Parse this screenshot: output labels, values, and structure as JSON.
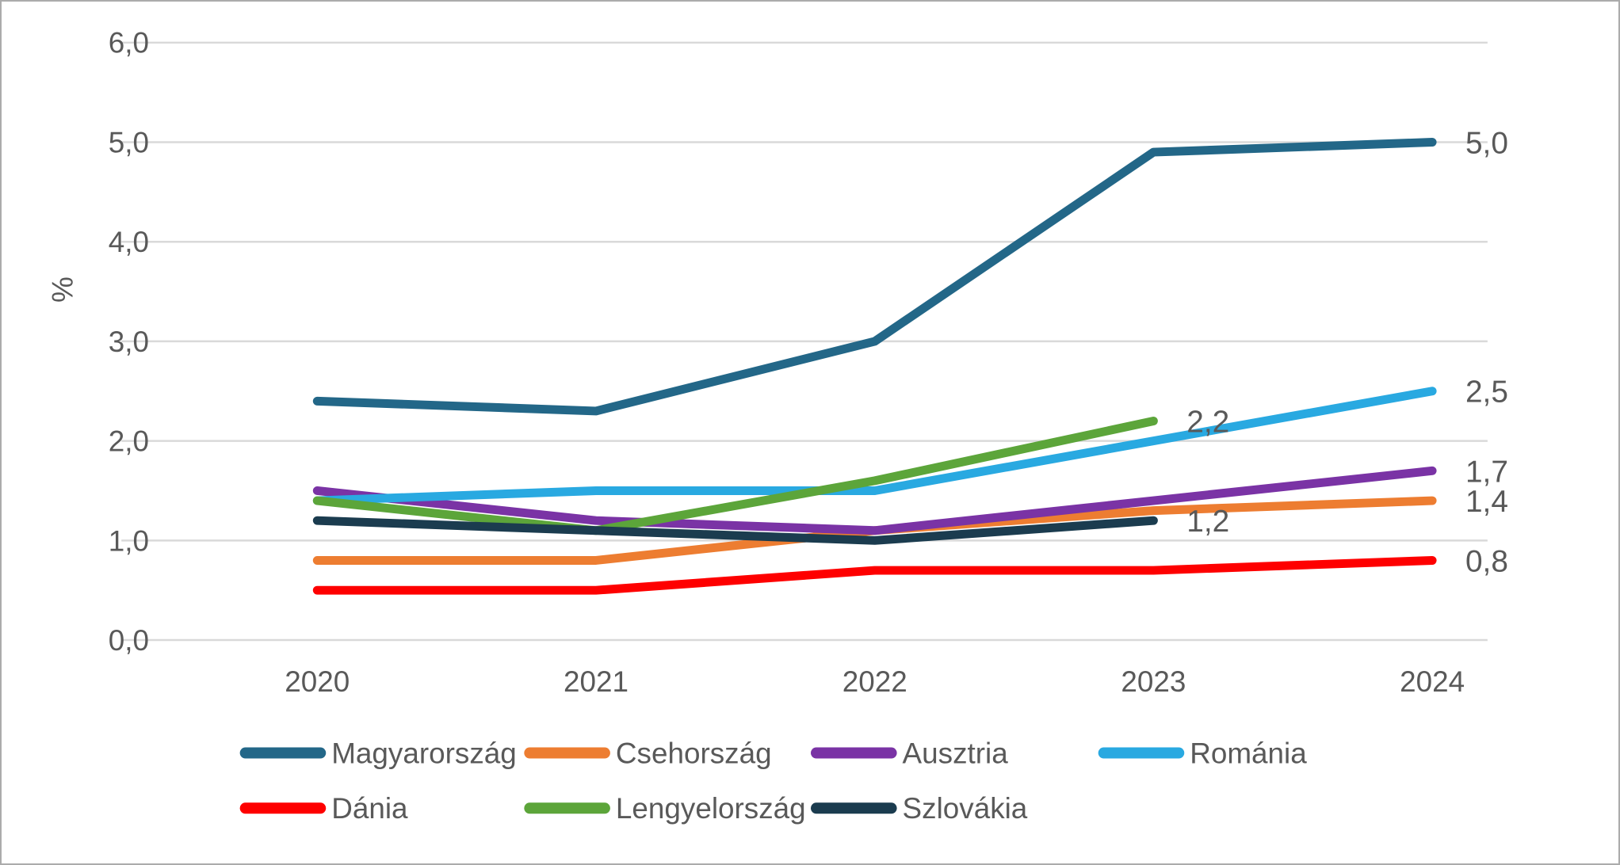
{
  "chart_data": {
    "type": "line",
    "title": "",
    "xlabel": "",
    "ylabel": "%",
    "decimal_separator": ",",
    "categories": [
      "2020",
      "2021",
      "2022",
      "2023",
      "2024"
    ],
    "y_ticks": [
      "0,0",
      "1,0",
      "2,0",
      "3,0",
      "4,0",
      "5,0",
      "6,0"
    ],
    "ylim": [
      0,
      6
    ],
    "grid": true,
    "legend_position": "bottom",
    "series": [
      {
        "name": "Magyarország",
        "color": "#236788",
        "values": [
          2.4,
          2.3,
          3.0,
          4.9,
          5.0
        ],
        "end_label": "5,0"
      },
      {
        "name": "Csehország",
        "color": "#ED7D31",
        "values": [
          0.8,
          0.8,
          1.1,
          1.3,
          1.4
        ],
        "end_label": "1,4"
      },
      {
        "name": "Ausztria",
        "color": "#7A33A5",
        "values": [
          1.5,
          1.2,
          1.1,
          1.4,
          1.7
        ],
        "end_label": "1,7"
      },
      {
        "name": "Románia",
        "color": "#29A9E1",
        "values": [
          1.4,
          1.5,
          1.5,
          2.0,
          2.5
        ],
        "end_label": "2,5"
      },
      {
        "name": "Dánia",
        "color": "#FE0000",
        "values": [
          0.5,
          0.5,
          0.7,
          0.7,
          0.8
        ],
        "end_label": "0,8"
      },
      {
        "name": "Lengyelország",
        "color": "#5CA53A",
        "values": [
          1.4,
          1.1,
          1.6,
          2.2
        ],
        "end_label": "2,2"
      },
      {
        "name": "Szlovákia",
        "color": "#1B3C4F",
        "values": [
          1.2,
          1.1,
          1.0,
          1.2
        ],
        "end_label": "1,2"
      }
    ],
    "legend_rows": [
      [
        "Magyarország",
        "Csehország",
        "Ausztria",
        "Románia"
      ],
      [
        "Dánia",
        "Lengyelország",
        "Szlovákia"
      ]
    ],
    "colors": {
      "gridline": "#D9D9D9",
      "axis_text": "#595959",
      "background": "#FFFFFF",
      "border": "#ABABAB"
    }
  }
}
